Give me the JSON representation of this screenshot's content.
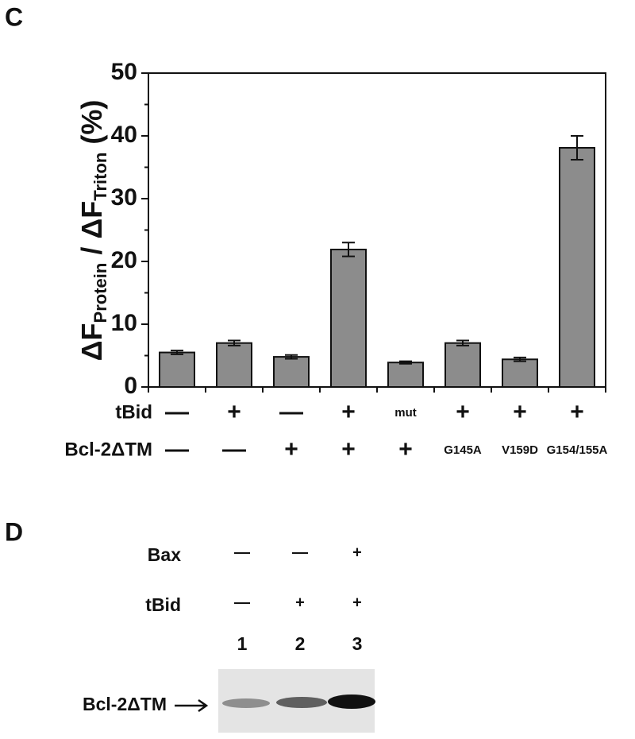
{
  "chart_data": {
    "type": "bar",
    "panel_label": "C",
    "ylabel_parts": [
      "ΔF",
      "Protein",
      " / ΔF",
      "Triton",
      " (%)"
    ],
    "values": [
      5.5,
      7.0,
      4.8,
      21.9,
      3.9,
      7.0,
      4.4,
      38.1
    ],
    "errors": [
      0.3,
      0.4,
      0.3,
      1.1,
      0.2,
      0.4,
      0.3,
      1.9
    ],
    "color": "#8c8c8c",
    "ylim": [
      0,
      50
    ],
    "yticks": [
      0,
      10,
      20,
      30,
      40,
      50
    ],
    "minor_yticks": [
      5,
      15,
      25,
      35,
      45
    ],
    "condition_rows": [
      {
        "label": "tBid",
        "values": [
          "—",
          "+",
          "—",
          "+",
          "mut",
          "+",
          "+",
          "+"
        ]
      },
      {
        "label": "Bcl-2ΔTM",
        "values": [
          "—",
          "—",
          "+",
          "+",
          "+",
          "G145A",
          "V159D",
          "G154/155A"
        ]
      }
    ]
  },
  "blot": {
    "panel_label": "D",
    "rows": [
      {
        "label": "Bax",
        "values": [
          "—",
          "—",
          "+"
        ]
      },
      {
        "label": "tBid",
        "values": [
          "—",
          "+",
          "+"
        ]
      }
    ],
    "lanes": [
      "1",
      "2",
      "3"
    ],
    "band_label": "Bcl-2ΔTM"
  }
}
